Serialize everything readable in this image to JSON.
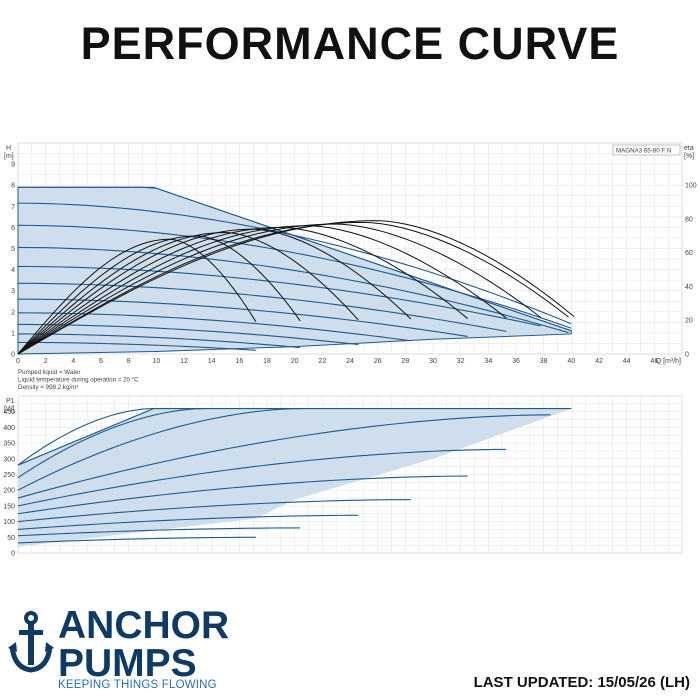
{
  "page_title": "PERFORMANCE CURVE",
  "brand": {
    "name_line1": "ANCHOR",
    "name_line2": "PUMPS",
    "tagline": "KEEPING THINGS FLOWING",
    "colors": {
      "navy": "#0f3a63",
      "accent": "#2b6cb0"
    }
  },
  "last_updated": "LAST UPDATED: 15/05/26 (LH)",
  "colors": {
    "fill": "#cfdeec",
    "curve": "#1f5a91",
    "efficiency": "#111111",
    "grid": "#e2e2e2"
  },
  "chart_data": [
    {
      "type": "line",
      "model": "MAGNA3 65-80 F N",
      "ylabel": "H",
      "yunit": "[m]",
      "xlabel": "Q [m³/h]",
      "xlim": [
        0,
        48
      ],
      "ylim": [
        0,
        10
      ],
      "xticks": [
        0,
        2,
        4,
        6,
        8,
        10,
        12,
        14,
        16,
        18,
        20,
        22,
        24,
        26,
        28,
        30,
        32,
        34,
        36,
        38,
        40,
        42,
        44,
        46
      ],
      "yticks": [
        0,
        1,
        2,
        3,
        4,
        5,
        6,
        7,
        8,
        9
      ],
      "y2label": "eta",
      "y2unit": "[%]",
      "y2lim": [
        0,
        125
      ],
      "y2ticks": [
        0,
        20,
        40,
        60,
        80,
        100
      ],
      "envelope": [
        [
          0,
          7.9
        ],
        [
          9.8,
          7.9
        ],
        [
          40,
          1.1
        ],
        [
          40,
          0.95
        ],
        [
          30,
          0.7
        ],
        [
          20,
          0.35
        ],
        [
          10,
          0.12
        ],
        [
          0,
          0
        ]
      ],
      "head_curves": [
        {
          "h0": 7.9,
          "q_end": 40
        },
        {
          "h0": 7.15,
          "q_end": 40
        },
        {
          "h0": 6.1,
          "q_end": 40
        },
        {
          "h0": 5.05,
          "q_end": 39.8
        },
        {
          "h0": 4.15,
          "q_end": 37.8
        },
        {
          "h0": 3.35,
          "q_end": 35.3
        },
        {
          "h0": 2.6,
          "q_end": 32.5
        },
        {
          "h0": 1.95,
          "q_end": 28.4
        },
        {
          "h0": 1.4,
          "q_end": 24.6
        },
        {
          "h0": 0.95,
          "q_end": 20.4
        },
        {
          "h0": 0.55,
          "q_end": 17.2
        }
      ],
      "efficiency_curves": [
        {
          "peak_q": 26,
          "peak_eta": 79,
          "q_end": 40.2
        },
        {
          "peak_q": 25,
          "peak_eta": 78,
          "q_end": 39.8
        },
        {
          "peak_q": 23,
          "peak_eta": 77,
          "q_end": 37.8
        },
        {
          "peak_q": 21,
          "peak_eta": 76,
          "q_end": 35.3
        },
        {
          "peak_q": 19,
          "peak_eta": 75,
          "q_end": 32.5
        },
        {
          "peak_q": 17,
          "peak_eta": 74,
          "q_end": 28.4
        },
        {
          "peak_q": 15,
          "peak_eta": 72,
          "q_end": 24.6
        },
        {
          "peak_q": 13,
          "peak_eta": 70,
          "q_end": 20.4
        },
        {
          "peak_q": 11,
          "peak_eta": 68,
          "q_end": 17.2
        }
      ],
      "notes": [
        "Pumped liquid = Water",
        "Liquid temperature during operation = 20 °C",
        "Density = 998.2 kg/m³"
      ]
    },
    {
      "type": "line",
      "ylabel": "P1",
      "yunit": "[W]",
      "xlim": [
        0,
        48
      ],
      "ylim": [
        0,
        500
      ],
      "yticks": [
        0,
        50,
        100,
        150,
        200,
        250,
        300,
        350,
        400,
        450
      ],
      "envelope": [
        [
          0,
          280
        ],
        [
          9.8,
          460
        ],
        [
          40,
          460
        ],
        [
          30,
          300
        ],
        [
          20,
          170
        ],
        [
          17.2,
          110
        ],
        [
          0,
          20
        ]
      ],
      "power_curves": [
        {
          "p0": 280,
          "pmax": 460,
          "q_end": 9.8
        },
        {
          "p0": 240,
          "pmax": 460,
          "q_end": 13.5
        },
        {
          "p0": 200,
          "pmax": 460,
          "q_end": 20.5
        },
        {
          "p0": 175,
          "pmax": 440,
          "q_end": 38.5
        },
        {
          "p0": 150,
          "pmax": 330,
          "q_end": 35.3
        },
        {
          "p0": 125,
          "pmax": 245,
          "q_end": 32.5
        },
        {
          "p0": 100,
          "pmax": 170,
          "q_end": 28.4
        },
        {
          "p0": 75,
          "pmax": 120,
          "q_end": 24.6
        },
        {
          "p0": 55,
          "pmax": 80,
          "q_end": 20.4
        },
        {
          "p0": 32,
          "pmax": 50,
          "q_end": 17.2
        }
      ]
    }
  ]
}
